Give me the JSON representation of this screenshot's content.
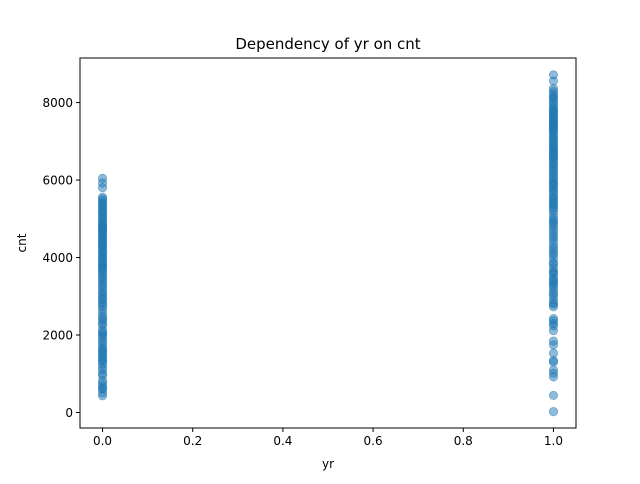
{
  "chart_data": {
    "type": "scatter",
    "title": "Dependency of yr on cnt",
    "xlabel": "yr",
    "ylabel": "cnt",
    "xlim": [
      -0.05,
      1.05
    ],
    "ylim": [
      -400,
      9150
    ],
    "xticks": [
      0.0,
      0.2,
      0.4,
      0.6,
      0.8,
      1.0
    ],
    "xtick_labels": [
      "0.0",
      "0.2",
      "0.4",
      "0.6",
      "0.8",
      "1.0"
    ],
    "yticks": [
      0,
      2000,
      4000,
      6000,
      8000
    ],
    "ytick_labels": [
      "0",
      "2000",
      "4000",
      "6000",
      "8000"
    ],
    "grid": false,
    "marker_color": "#1f77b4",
    "marker_alpha": 0.5,
    "series": [
      {
        "points": [
          [
            0,
            431
          ],
          [
            0,
            506
          ],
          [
            0,
            605
          ],
          [
            0,
            623
          ],
          [
            0,
            683
          ],
          [
            0,
            754
          ],
          [
            0,
            822
          ],
          [
            0,
            959
          ],
          [
            0,
            1000
          ],
          [
            0,
            1096
          ],
          [
            0,
            1167
          ],
          [
            0,
            1248
          ],
          [
            0,
            1321
          ],
          [
            0,
            1349
          ],
          [
            0,
            1406
          ],
          [
            0,
            1450
          ],
          [
            0,
            1510
          ],
          [
            0,
            1562
          ],
          [
            0,
            1605
          ],
          [
            0,
            1650
          ],
          [
            0,
            1712
          ],
          [
            0,
            1795
          ],
          [
            0,
            1842
          ],
          [
            0,
            1927
          ],
          [
            0,
            1985
          ],
          [
            0,
            2028
          ],
          [
            0,
            2077
          ],
          [
            0,
            2132
          ],
          [
            0,
            2252
          ],
          [
            0,
            2294
          ],
          [
            0,
            2368
          ],
          [
            0,
            2431
          ],
          [
            0,
            2485
          ],
          [
            0,
            2566
          ],
          [
            0,
            2660
          ],
          [
            0,
            2729
          ],
          [
            0,
            2792
          ],
          [
            0,
            2832
          ],
          [
            0,
            2914
          ],
          [
            0,
            2947
          ],
          [
            0,
            3005
          ],
          [
            0,
            3068
          ],
          [
            0,
            3115
          ],
          [
            0,
            3190
          ],
          [
            0,
            3249
          ],
          [
            0,
            3310
          ],
          [
            0,
            3372
          ],
          [
            0,
            3422
          ],
          [
            0,
            3485
          ],
          [
            0,
            3544
          ],
          [
            0,
            3598
          ],
          [
            0,
            3649
          ],
          [
            0,
            3710
          ],
          [
            0,
            3740
          ],
          [
            0,
            3784
          ],
          [
            0,
            3830
          ],
          [
            0,
            3872
          ],
          [
            0,
            3920
          ],
          [
            0,
            3974
          ],
          [
            0,
            4010
          ],
          [
            0,
            4066
          ],
          [
            0,
            4118
          ],
          [
            0,
            4150
          ],
          [
            0,
            4195
          ],
          [
            0,
            4258
          ],
          [
            0,
            4302
          ],
          [
            0,
            4333
          ],
          [
            0,
            4378
          ],
          [
            0,
            4429
          ],
          [
            0,
            4460
          ],
          [
            0,
            4511
          ],
          [
            0,
            4570
          ],
          [
            0,
            4595
          ],
          [
            0,
            4648
          ],
          [
            0,
            4677
          ],
          [
            0,
            4717
          ],
          [
            0,
            4758
          ],
          [
            0,
            4790
          ],
          [
            0,
            4840
          ],
          [
            0,
            4866
          ],
          [
            0,
            4906
          ],
          [
            0,
            4966
          ],
          [
            0,
            5020
          ],
          [
            0,
            5058
          ],
          [
            0,
            5107
          ],
          [
            0,
            5169
          ],
          [
            0,
            5202
          ],
          [
            0,
            5260
          ],
          [
            0,
            5315
          ],
          [
            0,
            5362
          ],
          [
            0,
            5409
          ],
          [
            0,
            5463
          ],
          [
            0,
            5511
          ],
          [
            0,
            5558
          ],
          [
            0,
            5805
          ],
          [
            0,
            5923
          ],
          [
            0,
            6043
          ],
          [
            1,
            22
          ],
          [
            1,
            441
          ],
          [
            1,
            920
          ],
          [
            1,
            1013
          ],
          [
            1,
            1096
          ],
          [
            1,
            1301
          ],
          [
            1,
            1341
          ],
          [
            1,
            1529
          ],
          [
            1,
            1746
          ],
          [
            1,
            1842
          ],
          [
            1,
            2114
          ],
          [
            1,
            2236
          ],
          [
            1,
            2298
          ],
          [
            1,
            2368
          ],
          [
            1,
            2424
          ],
          [
            1,
            2729
          ],
          [
            1,
            2792
          ],
          [
            1,
            2832
          ],
          [
            1,
            2914
          ],
          [
            1,
            3005
          ],
          [
            1,
            3068
          ],
          [
            1,
            3129
          ],
          [
            1,
            3214
          ],
          [
            1,
            3285
          ],
          [
            1,
            3331
          ],
          [
            1,
            3387
          ],
          [
            1,
            3422
          ],
          [
            1,
            3485
          ],
          [
            1,
            3574
          ],
          [
            1,
            3613
          ],
          [
            1,
            3649
          ],
          [
            1,
            3740
          ],
          [
            1,
            3830
          ],
          [
            1,
            3872
          ],
          [
            1,
            3974
          ],
          [
            1,
            4066
          ],
          [
            1,
            4118
          ],
          [
            1,
            4195
          ],
          [
            1,
            4258
          ],
          [
            1,
            4333
          ],
          [
            1,
            4429
          ],
          [
            1,
            4511
          ],
          [
            1,
            4570
          ],
          [
            1,
            4648
          ],
          [
            1,
            4717
          ],
          [
            1,
            4790
          ],
          [
            1,
            4866
          ],
          [
            1,
            4906
          ],
          [
            1,
            4966
          ],
          [
            1,
            5020
          ],
          [
            1,
            5107
          ],
          [
            1,
            5202
          ],
          [
            1,
            5260
          ],
          [
            1,
            5315
          ],
          [
            1,
            5362
          ],
          [
            1,
            5409
          ],
          [
            1,
            5463
          ],
          [
            1,
            5511
          ],
          [
            1,
            5558
          ],
          [
            1,
            5611
          ],
          [
            1,
            5687
          ],
          [
            1,
            5728
          ],
          [
            1,
            5786
          ],
          [
            1,
            5847
          ],
          [
            1,
            5895
          ],
          [
            1,
            5923
          ],
          [
            1,
            5986
          ],
          [
            1,
            6043
          ],
          [
            1,
            6093
          ],
          [
            1,
            6153
          ],
          [
            1,
            6207
          ],
          [
            1,
            6269
          ],
          [
            1,
            6312
          ],
          [
            1,
            6370
          ],
          [
            1,
            6421
          ],
          [
            1,
            6458
          ],
          [
            1,
            6530
          ],
          [
            1,
            6565
          ],
          [
            1,
            6606
          ],
          [
            1,
            6660
          ],
          [
            1,
            6685
          ],
          [
            1,
            6733
          ],
          [
            1,
            6770
          ],
          [
            1,
            6824
          ],
          [
            1,
            6869
          ],
          [
            1,
            6904
          ],
          [
            1,
            6966
          ],
          [
            1,
            7013
          ],
          [
            1,
            7058
          ],
          [
            1,
            7109
          ],
          [
            1,
            7148
          ],
          [
            1,
            7216
          ],
          [
            1,
            7261
          ],
          [
            1,
            7286
          ],
          [
            1,
            7338
          ],
          [
            1,
            7384
          ],
          [
            1,
            7415
          ],
          [
            1,
            7458
          ],
          [
            1,
            7494
          ],
          [
            1,
            7525
          ],
          [
            1,
            7570
          ],
          [
            1,
            7605
          ],
          [
            1,
            7641
          ],
          [
            1,
            7691
          ],
          [
            1,
            7736
          ],
          [
            1,
            7767
          ],
          [
            1,
            7804
          ],
          [
            1,
            7852
          ],
          [
            1,
            7907
          ],
          [
            1,
            7965
          ],
          [
            1,
            8009
          ],
          [
            1,
            8090
          ],
          [
            1,
            8120
          ],
          [
            1,
            8167
          ],
          [
            1,
            8227
          ],
          [
            1,
            8294
          ],
          [
            1,
            8362
          ],
          [
            1,
            8555
          ],
          [
            1,
            8714
          ]
        ]
      }
    ]
  }
}
